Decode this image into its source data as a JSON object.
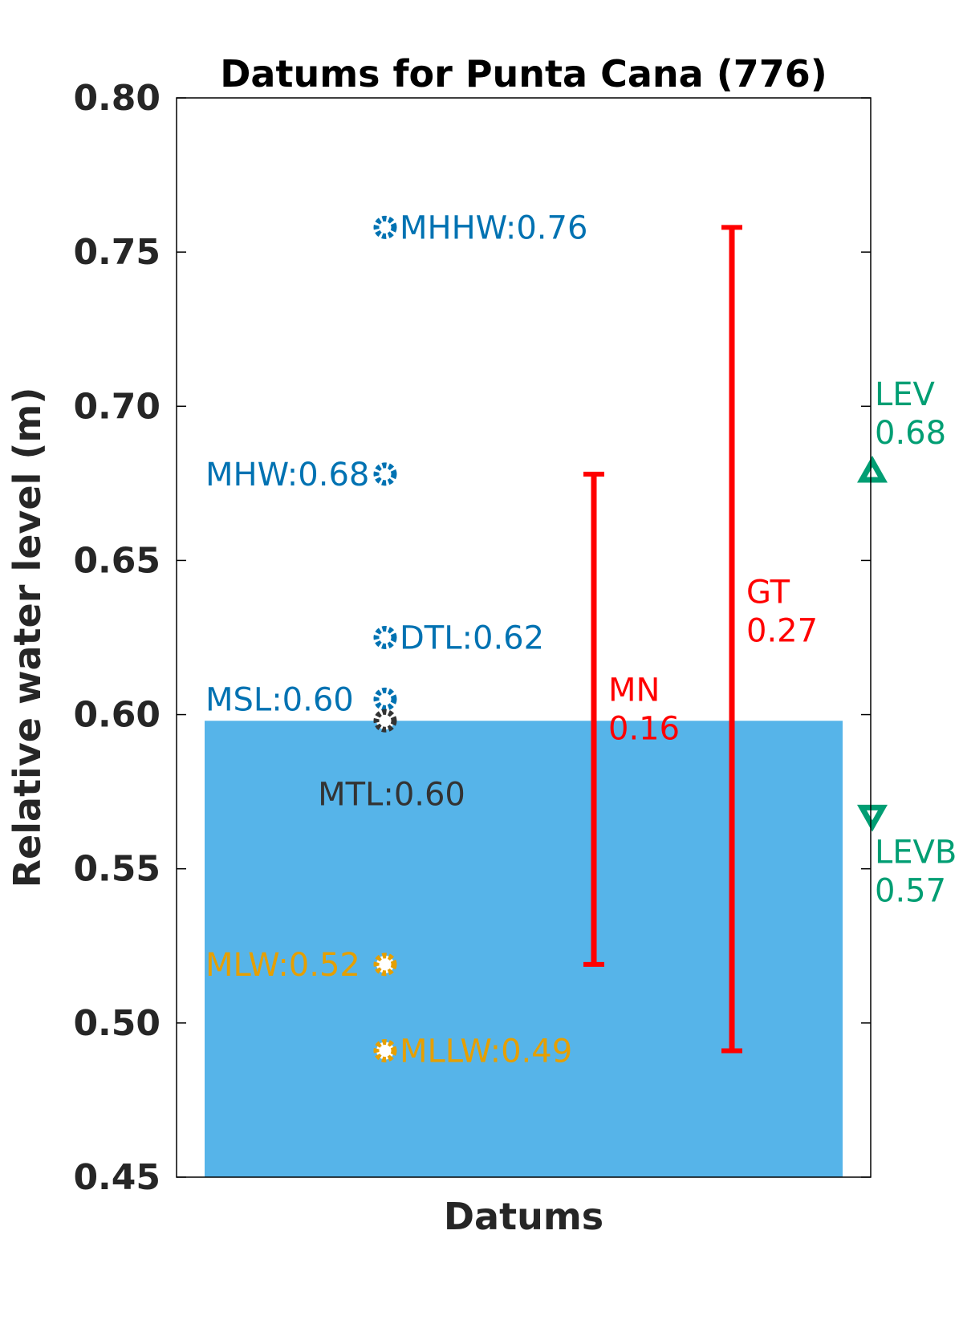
{
  "chart_data": {
    "type": "scatter",
    "title": "Datums for Punta Cana (776)",
    "xlabel": "Datums",
    "ylabel": "Relative water level (m)",
    "ylim": [
      0.45,
      0.8
    ],
    "yticks": [
      "0.45",
      "0.50",
      "0.55",
      "0.60",
      "0.65",
      "0.70",
      "0.75",
      "0.80"
    ],
    "grid": false,
    "legend": "none",
    "water_fill": {
      "top": 0.598,
      "color": "#56b4e9"
    },
    "datums": [
      {
        "name": "MHHW",
        "value": 0.758,
        "label": "MHHW:0.76",
        "color": "#0072b2",
        "label_side": "right"
      },
      {
        "name": "MHW",
        "value": 0.678,
        "label": "MHW:0.68",
        "color": "#0072b2",
        "label_side": "left"
      },
      {
        "name": "DTL",
        "value": 0.625,
        "label": "DTL:0.62",
        "color": "#0072b2",
        "label_side": "right"
      },
      {
        "name": "MSL",
        "value": 0.605,
        "label": "MSL:0.60",
        "color": "#0072b2",
        "label_side": "left"
      },
      {
        "name": "MTL",
        "value": 0.598,
        "label": "MTL:0.60",
        "color": "#333333",
        "label_side": "below"
      },
      {
        "name": "MLW",
        "value": 0.519,
        "label": "MLW:0.52",
        "color": "#e69f00",
        "label_side": "left"
      },
      {
        "name": "MLLW",
        "value": 0.491,
        "label": "MLLW:0.49",
        "color": "#e69f00",
        "label_side": "right"
      }
    ],
    "ranges": [
      {
        "name": "MN",
        "low": 0.519,
        "high": 0.678,
        "label_lines": [
          "MN",
          "0.16"
        ],
        "color": "#ff0000"
      },
      {
        "name": "GT",
        "low": 0.491,
        "high": 0.758,
        "label_lines": [
          "GT",
          "0.27"
        ],
        "color": "#ff0000"
      }
    ],
    "extremes": [
      {
        "name": "LEV",
        "value": 0.679,
        "marker": "triangle-up",
        "label_lines": [
          "LEV",
          "0.68"
        ],
        "color": "#009e73"
      },
      {
        "name": "LEVB",
        "value": 0.567,
        "marker": "triangle-down",
        "label_lines": [
          "LEVB",
          "0.57"
        ],
        "color": "#009e73"
      }
    ]
  }
}
